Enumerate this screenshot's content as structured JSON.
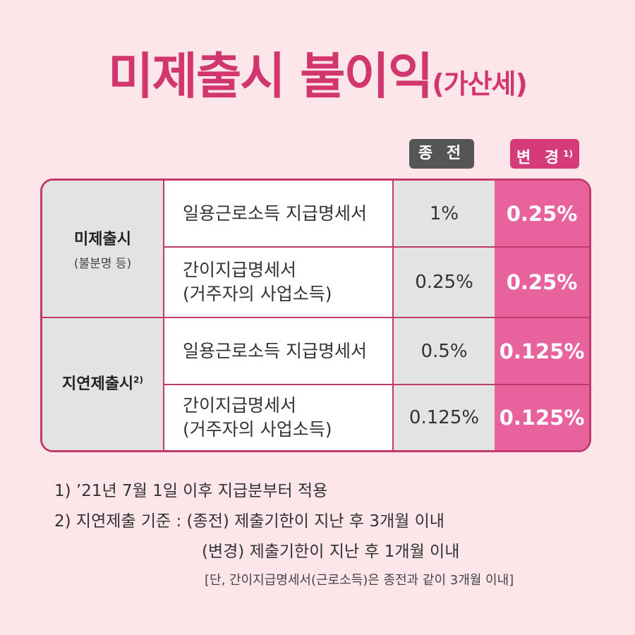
{
  "title": {
    "main": "미제출시 불이익",
    "sub": "(가산세)"
  },
  "columns": {
    "prev": "종 전",
    "new": "변 경",
    "new_note": "1)"
  },
  "categories": [
    {
      "name": "미제출시",
      "sup": "",
      "note": "(불분명 등)"
    },
    {
      "name": "지연제출시",
      "sup": "2)",
      "note": ""
    }
  ],
  "rows": [
    {
      "line1": "일용근로소득 지급명세서",
      "line2": "",
      "prev": "1%",
      "new": "0.25%"
    },
    {
      "line1": "간이지급명세서",
      "line2": "(거주자의 사업소득)",
      "prev": "0.25%",
      "new": "0.25%"
    },
    {
      "line1": "일용근로소득 지급명세서",
      "line2": "",
      "prev": "0.5%",
      "new": "0.125%"
    },
    {
      "line1": "간이지급명세서",
      "line2": "(거주자의 사업소득)",
      "prev": "0.125%",
      "new": "0.125%"
    }
  ],
  "footnotes": {
    "f1": "1) ’21년 7월 1일 이후 지급분부터 적용",
    "f2": "2) 지연제출 기준 : (종전) 제출기한이 지난 후 3개월 이내",
    "f3": "(변경) 제출기한이 지난 후 1개월 이내",
    "f4": "[단, 간이지급명세서(근로소득)은 종전과 같이 3개월 이내]"
  },
  "colors": {
    "accent": "#d1366f",
    "highlight": "#e8639e",
    "background": "#fce6ea"
  }
}
